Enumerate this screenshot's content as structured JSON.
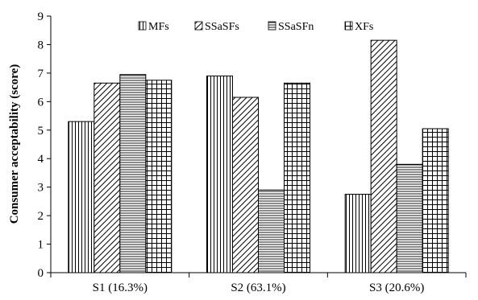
{
  "chart_data": {
    "type": "bar",
    "title": "",
    "xlabel": "",
    "ylabel": "Consumer acceptability (score)",
    "ylim": [
      0,
      9
    ],
    "yticks": [
      "0",
      "1",
      "2",
      "3",
      "4",
      "5",
      "6",
      "7",
      "8",
      "9"
    ],
    "categories": [
      "S1 (16.3%)",
      "S2 (63.1%)",
      "S3 (20.6%)"
    ],
    "series": [
      {
        "name": "MFs",
        "pattern": "vertical-lines",
        "values": [
          5.3,
          6.9,
          2.75
        ]
      },
      {
        "name": "SSaSFs",
        "pattern": "diagonal-lines",
        "values": [
          6.65,
          6.15,
          8.15
        ]
      },
      {
        "name": "SSaSFn",
        "pattern": "horizontal-lines",
        "values": [
          6.95,
          2.9,
          3.8
        ]
      },
      {
        "name": "XFs",
        "pattern": "grid",
        "values": [
          6.75,
          6.65,
          5.05
        ]
      }
    ],
    "legend_position": "top",
    "grid": false
  }
}
